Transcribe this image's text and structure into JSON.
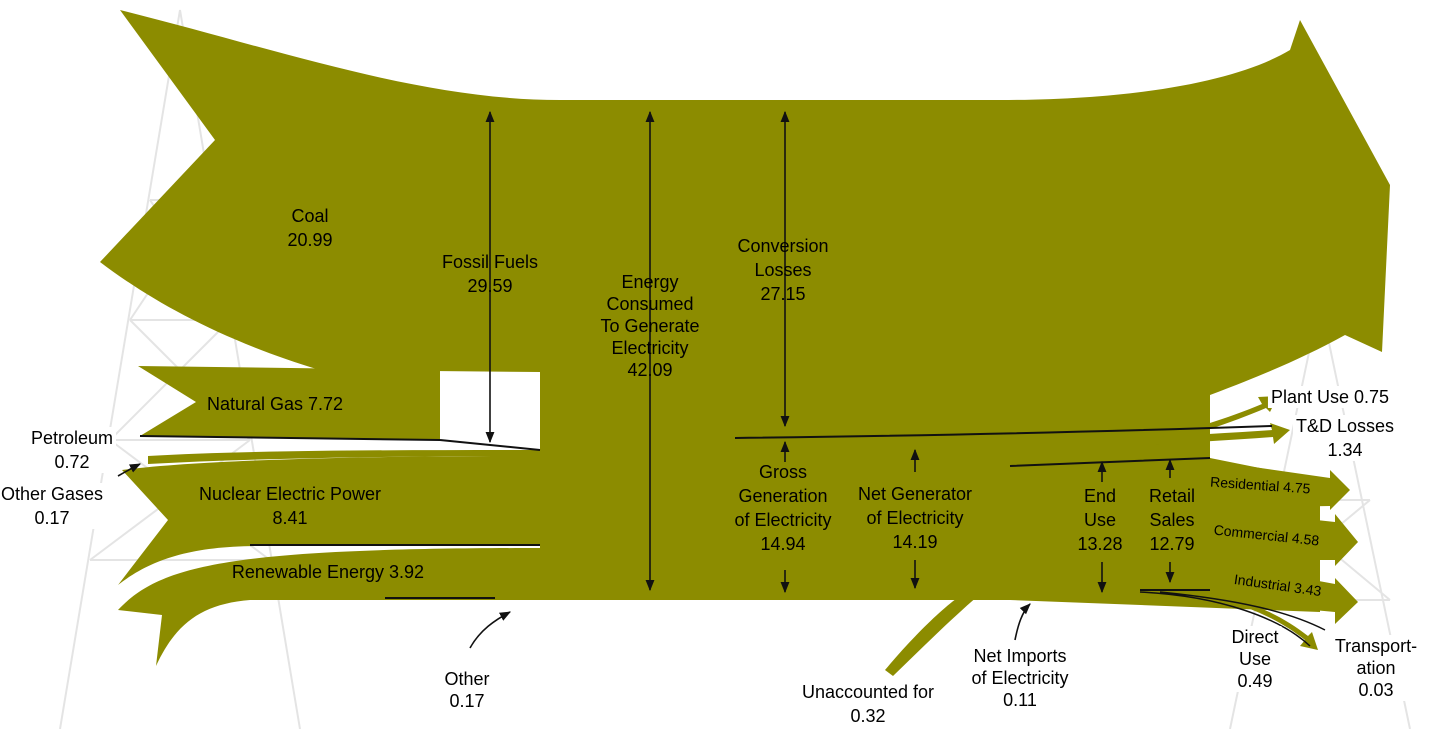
{
  "labels": {
    "coal": [
      "Coal",
      "20.99"
    ],
    "fossil_fuels": [
      "Fossil Fuels",
      "29.59"
    ],
    "energy_consumed": [
      "Energy",
      "Consumed",
      "To Generate",
      "Electricity",
      "42.09"
    ],
    "conversion_losses": [
      "Conversion",
      "Losses",
      "27.15"
    ],
    "natural_gas": [
      "Natural Gas 7.72"
    ],
    "petroleum": [
      "Petroleum",
      "0.72"
    ],
    "other_gases": [
      "Other Gases",
      "0.17"
    ],
    "nuclear": [
      "Nuclear Electric Power",
      "8.41"
    ],
    "renewable": [
      "Renewable Energy 3.92"
    ],
    "other": [
      "Other",
      "0.17"
    ],
    "gross_generation": [
      "Gross",
      "Generation",
      "of Electricity",
      "14.94"
    ],
    "net_generator": [
      "Net Generator",
      "of Electricity",
      "14.19"
    ],
    "end_use": [
      "End",
      "Use",
      "13.28"
    ],
    "retail_sales": [
      "Retail",
      "Sales",
      "12.79"
    ],
    "plant_use": [
      "Plant Use 0.75"
    ],
    "td_losses": [
      "T&D Losses",
      "1.34"
    ],
    "residential": [
      "Residential 4.75"
    ],
    "commercial": [
      "Commercial 4.58"
    ],
    "industrial": [
      "Industrial 3.43"
    ],
    "unaccounted": [
      "Unaccounted for",
      "0.32"
    ],
    "net_imports": [
      "Net Imports",
      "of Electricity",
      "0.11"
    ],
    "direct_use": [
      "Direct",
      "Use",
      "0.49"
    ],
    "transportation": [
      "Transport-",
      "ation",
      "0.03"
    ]
  }
}
